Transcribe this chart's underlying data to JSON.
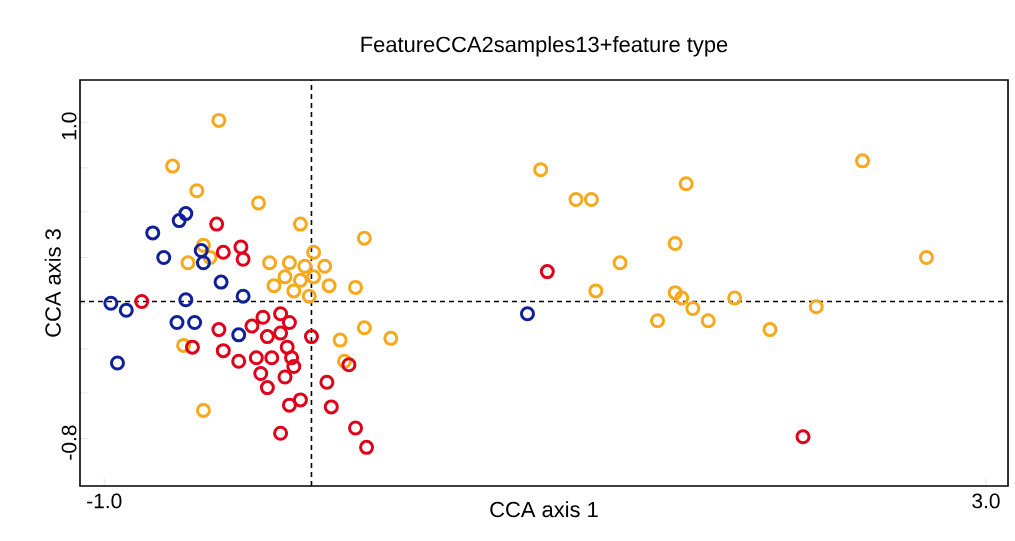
{
  "chart_data": {
    "type": "scatter",
    "title": "FeatureCCA2samples13+feature type",
    "xlabel": "CCA axis 1",
    "ylabel": "CCA axis 3",
    "xlim": [
      -1.11,
      3.1
    ],
    "ylim": [
      -1.07,
      1.24
    ],
    "xticks": [
      {
        "value": -1.0,
        "label": "-1.0"
      },
      {
        "value": 3.0,
        "label": "3.0"
      }
    ],
    "yticks": [
      {
        "value": -0.8,
        "label": "-0.8"
      },
      {
        "value": -0.54,
        "label": null
      },
      {
        "value": -0.29,
        "label": null
      },
      {
        "value": -0.03,
        "label": null
      },
      {
        "value": 0.23,
        "label": null
      },
      {
        "value": 0.49,
        "label": null
      },
      {
        "value": 0.74,
        "label": null
      },
      {
        "value": 1.0,
        "label": "1.0"
      }
    ],
    "marker": "circle",
    "grid": false,
    "ref_lines": [
      {
        "axis": "x",
        "value": -0.06,
        "line_style": "dashed",
        "color": "#000000"
      },
      {
        "axis": "y",
        "value": -0.02,
        "line_style": "dashed",
        "color": "#000000"
      }
    ],
    "series": [
      {
        "color": "#f7a81b",
        "x": [
          -0.48,
          -0.69,
          -0.58,
          -0.3,
          -0.11,
          0.18,
          -0.05,
          -0.25,
          -0.16,
          -0.09,
          0.0,
          -0.18,
          -0.11,
          -0.05,
          0.02,
          -0.07,
          -0.14,
          -0.23,
          -0.55,
          -0.62,
          -0.52,
          0.14,
          0.18,
          0.3,
          0.07,
          0.09,
          -0.64,
          -0.55,
          0.98,
          1.14,
          1.21,
          1.64,
          2.44,
          2.73,
          1.59,
          1.34,
          1.23,
          1.59,
          1.62,
          1.67,
          1.74,
          1.51,
          1.86,
          2.02,
          2.23
        ],
        "values": [
          1.01,
          0.75,
          0.61,
          0.54,
          0.42,
          0.34,
          0.26,
          0.2,
          0.2,
          0.18,
          0.18,
          0.12,
          0.1,
          0.12,
          0.07,
          0.01,
          0.04,
          0.07,
          0.3,
          0.2,
          0.23,
          0.06,
          -0.17,
          -0.23,
          -0.24,
          -0.36,
          -0.27,
          -0.64,
          0.73,
          0.56,
          0.56,
          0.65,
          0.78,
          0.23,
          0.31,
          0.2,
          0.04,
          0.03,
          0.0,
          -0.06,
          -0.13,
          -0.13,
          0.0,
          -0.18,
          -0.05
        ]
      },
      {
        "color": "#e0001a",
        "x": [
          -0.49,
          -0.46,
          -0.38,
          -0.37,
          -0.83,
          1.01,
          2.17,
          -0.6,
          -0.48,
          -0.46,
          -0.39,
          -0.29,
          -0.26,
          -0.18,
          -0.14,
          -0.16,
          -0.11,
          -0.2,
          -0.06,
          0.01,
          0.03,
          0.11,
          0.14,
          0.19,
          -0.2,
          -0.28,
          -0.33,
          -0.26,
          -0.2,
          -0.17,
          -0.31,
          -0.24,
          -0.16,
          -0.15
        ],
        "values": [
          0.42,
          0.26,
          0.29,
          0.22,
          -0.02,
          0.15,
          -0.79,
          -0.28,
          -0.18,
          -0.3,
          -0.36,
          -0.43,
          -0.51,
          -0.45,
          -0.39,
          -0.61,
          -0.58,
          -0.77,
          -0.22,
          -0.48,
          -0.62,
          -0.38,
          -0.74,
          -0.85,
          -0.09,
          -0.11,
          -0.16,
          -0.22,
          -0.2,
          -0.28,
          -0.34,
          -0.34,
          -0.14,
          -0.34
        ]
      },
      {
        "color": "#10209a",
        "x": [
          -0.63,
          -0.66,
          -0.78,
          -0.73,
          -0.56,
          -0.55,
          -0.47,
          -0.37,
          -0.97,
          -0.9,
          -0.63,
          -0.67,
          -0.59,
          -0.39,
          -0.94,
          0.92
        ],
        "values": [
          0.48,
          0.44,
          0.37,
          0.23,
          0.27,
          0.2,
          0.09,
          0.01,
          -0.03,
          -0.07,
          -0.01,
          -0.14,
          -0.14,
          -0.21,
          -0.37,
          -0.09
        ]
      }
    ]
  }
}
